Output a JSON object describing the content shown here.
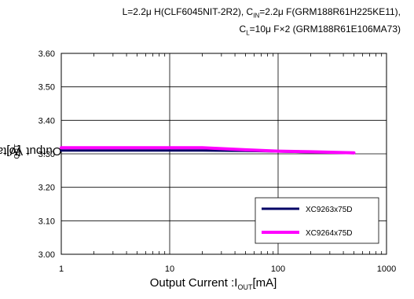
{
  "notes": {
    "line1_prefix": "L=2.2μ H(CLF6045NIT-2R2), C",
    "line1_sub": "IN",
    "line1_suffix": "=2.2μ F(GRM188R61H225KE11),",
    "line2_prefix": "C",
    "line2_sub": "L",
    "line2_suffix": "=10μ F×2 (GRM188R61E106MA73)"
  },
  "chart_data": {
    "type": "line",
    "xscale": "log",
    "xlim": [
      1,
      1000
    ],
    "ylim": [
      3.0,
      3.6
    ],
    "grid": true,
    "legend_position": "lower-right",
    "xlabel_prefix": "Output Current :I",
    "xlabel_sub": "OUT",
    "xlabel_suffix": "[mA]",
    "ylabel_prefix": "Output Voltage : V",
    "ylabel_sub": "OUT",
    "ylabel_suffix": "[V]",
    "xticks": [
      {
        "value": 1,
        "label": "1"
      },
      {
        "value": 10,
        "label": "10"
      },
      {
        "value": 100,
        "label": "100"
      },
      {
        "value": 1000,
        "label": "1000"
      }
    ],
    "yticks": [
      {
        "value": 3.0,
        "label": "3.00"
      },
      {
        "value": 3.1,
        "label": "3.10"
      },
      {
        "value": 3.2,
        "label": "3.20"
      },
      {
        "value": 3.3,
        "label": "3.30"
      },
      {
        "value": 3.4,
        "label": "3.40"
      },
      {
        "value": 3.5,
        "label": "3.50"
      },
      {
        "value": 3.6,
        "label": "3.60"
      }
    ],
    "series": [
      {
        "name": "XC9263x75D",
        "color": "#000066",
        "x": [
          1,
          2,
          5,
          10,
          20,
          50,
          100,
          200,
          500
        ],
        "y": [
          3.31,
          3.31,
          3.31,
          3.31,
          3.31,
          3.309,
          3.307,
          3.305,
          3.302
        ]
      },
      {
        "name": "XC9264x75D",
        "color": "#ff00ff",
        "x": [
          1,
          2,
          5,
          10,
          20,
          50,
          100,
          200,
          500
        ],
        "y": [
          3.318,
          3.318,
          3.318,
          3.318,
          3.318,
          3.312,
          3.308,
          3.306,
          3.303
        ]
      }
    ]
  }
}
